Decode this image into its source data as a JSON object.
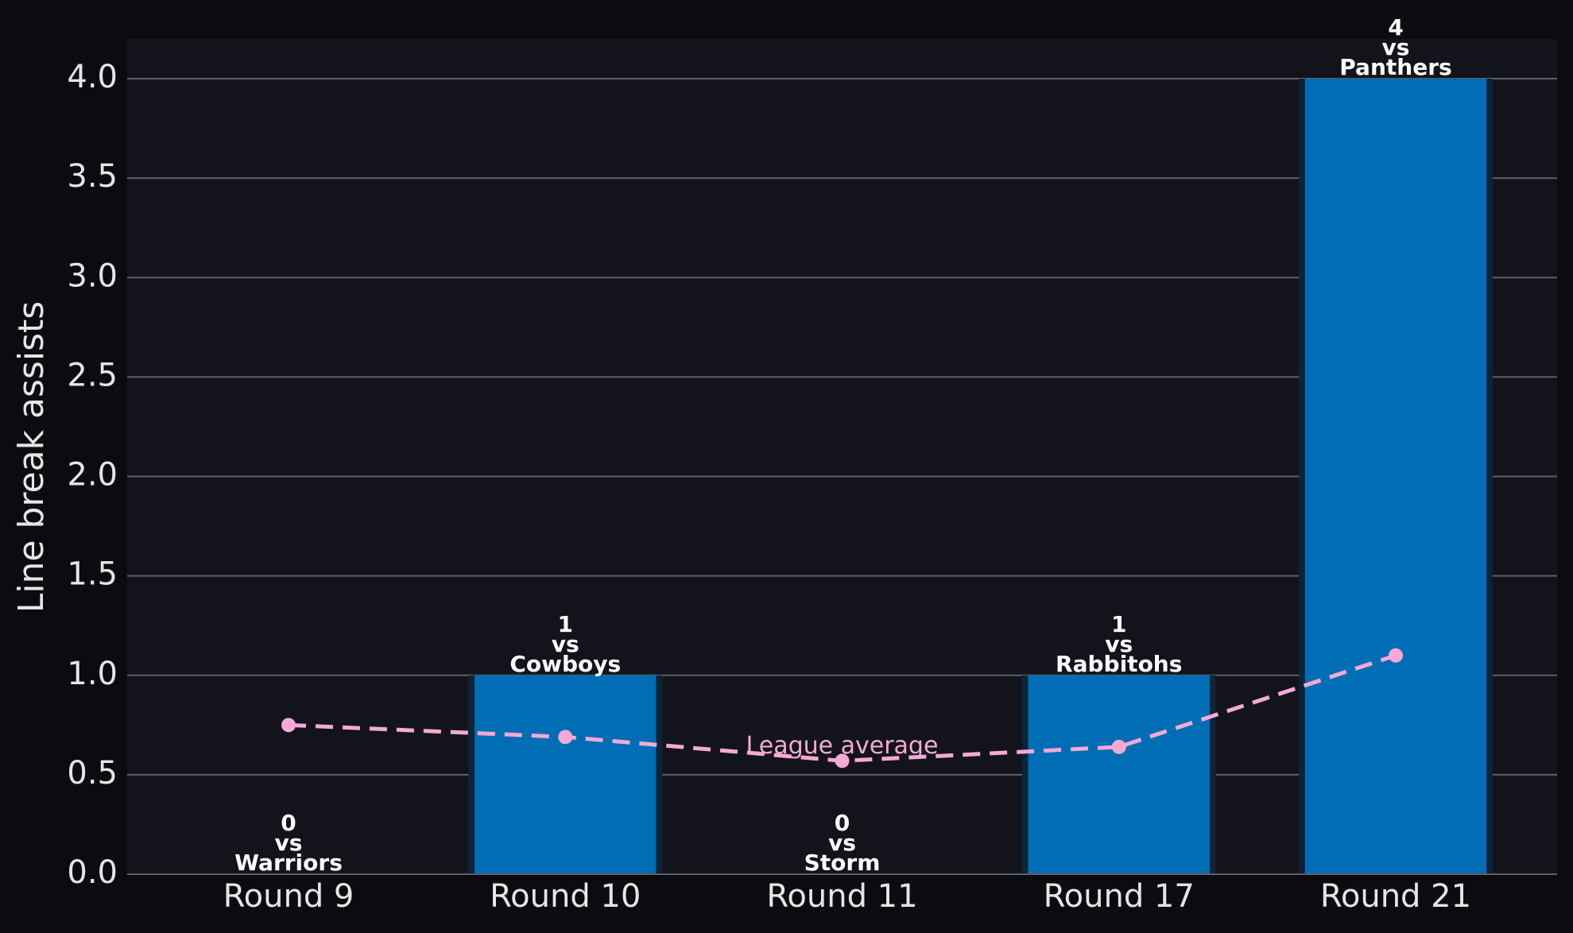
{
  "chart_data": {
    "type": "bar",
    "y_label": "Line break assists",
    "categories": [
      "Round 9",
      "Round 10",
      "Round 11",
      "Round 17",
      "Round 21"
    ],
    "values": [
      0,
      1,
      0,
      1,
      4
    ],
    "opponent_prefix": "vs",
    "opponents": [
      "Warriors",
      "Cowboys",
      "Storm",
      "Rabbitohs",
      "Panthers"
    ],
    "color": "#006db5",
    "line": {
      "name": "League average",
      "color": "#f5a9d6",
      "values": [
        0.75,
        0.69,
        0.57,
        0.64,
        1.1
      ]
    },
    "ylim": [
      0,
      4.2
    ],
    "yticks": [
      {
        "value": 0,
        "label": "0.0"
      },
      0.5,
      {
        "value": 1,
        "label": "1.0"
      },
      1.5,
      {
        "value": 2,
        "label": "2.0"
      },
      2.5,
      {
        "value": 3,
        "label": "3.0"
      },
      3.5,
      {
        "value": 4,
        "label": "4.0"
      }
    ],
    "grid": true
  }
}
